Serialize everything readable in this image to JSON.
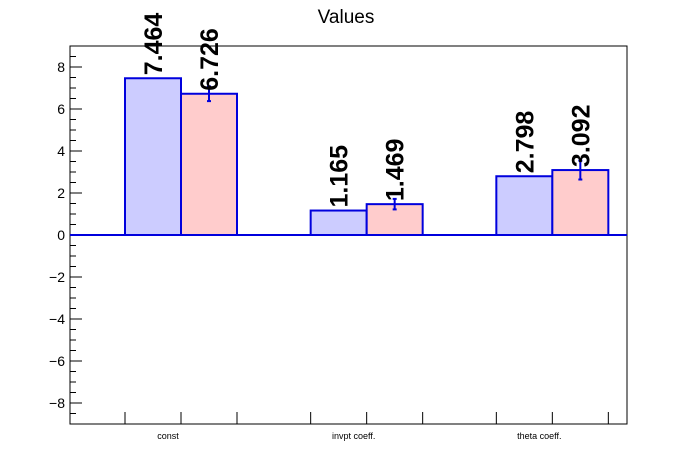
{
  "chart_data": {
    "type": "bar",
    "title": "Values",
    "categories": [
      "const",
      "invpt coeff.",
      "theta coeff."
    ],
    "series": [
      {
        "values": [
          7.464,
          1.165,
          2.798
        ],
        "color": "#ccccff"
      },
      {
        "values": [
          6.726,
          1.469,
          3.092
        ],
        "errors": [
          0.35,
          0.25,
          0.45
        ],
        "color": "#ffcccc"
      }
    ],
    "bar_outline_color": "#0000dd",
    "ylim": [
      -9,
      9
    ],
    "yticks": [
      -8,
      -6,
      -4,
      -2,
      0,
      2,
      4,
      6,
      8
    ],
    "ytick_labels": [
      "−8",
      "−6",
      "−4",
      "−2",
      "0",
      "2",
      "4",
      "6",
      "8"
    ],
    "data_labels": [
      [
        "7.464",
        "1.165",
        "2.798"
      ],
      [
        "6.726",
        "1.469",
        "3.092"
      ]
    ],
    "xlabel": "",
    "ylabel": "",
    "grid": false,
    "legend": "none"
  }
}
